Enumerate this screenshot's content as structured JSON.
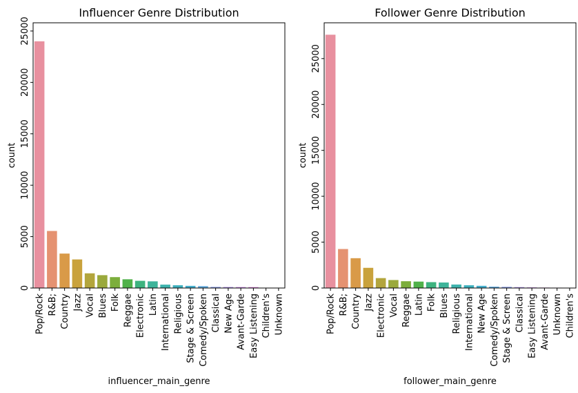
{
  "chart_data": [
    {
      "type": "bar",
      "title": "Influencer Genre Distribution",
      "xlabel": "influencer_main_genre",
      "ylabel": "count",
      "ylim": [
        0,
        25800
      ],
      "yticks": [
        0,
        5000,
        10000,
        15000,
        20000,
        25000
      ],
      "grid": false,
      "categories": [
        "Pop/Rock",
        "R&B;",
        "Country",
        "Jazz",
        "Vocal",
        "Blues",
        "Folk",
        "Reggae",
        "Electronic",
        "Latin",
        "International",
        "Religious",
        "Stage & Screen",
        "Comedy/Spoken",
        "Classical",
        "New Age",
        "Avant-Garde",
        "Easy Listening",
        "Children's",
        "Unknown"
      ],
      "values": [
        24000,
        5550,
        3350,
        2780,
        1430,
        1250,
        1060,
        850,
        700,
        650,
        330,
        270,
        210,
        180,
        110,
        100,
        95,
        90,
        20,
        10
      ],
      "colors": [
        "#e8909f",
        "#e59271",
        "#d99a48",
        "#c9a23c",
        "#b3a53c",
        "#9aa93c",
        "#7cae3c",
        "#50b14a",
        "#3db37f",
        "#3eb49a",
        "#3eb3ad",
        "#3fb0bd",
        "#43adcb",
        "#60a7da",
        "#8d9ee6",
        "#b093ea",
        "#cb8ae8",
        "#de84df",
        "#e585c5",
        "#e88ab0"
      ]
    },
    {
      "type": "bar",
      "title": "Follower Genre Distribution",
      "xlabel": "follower_main_genre",
      "ylabel": "count",
      "ylim": [
        0,
        28900
      ],
      "yticks": [
        0,
        5000,
        10000,
        15000,
        20000,
        25000
      ],
      "grid": false,
      "categories": [
        "Pop/Rock",
        "R&B;",
        "Country",
        "Jazz",
        "Electronic",
        "Vocal",
        "Reggae",
        "Latin",
        "Folk",
        "Blues",
        "Religious",
        "International",
        "New Age",
        "Comedy/Spoken",
        "Stage & Screen",
        "Classical",
        "Easy Listening",
        "Avant-Garde",
        "Unknown",
        "Children's"
      ],
      "values": [
        27600,
        4250,
        3250,
        2200,
        1080,
        870,
        740,
        700,
        640,
        600,
        380,
        300,
        240,
        150,
        130,
        100,
        70,
        50,
        40,
        20
      ],
      "colors": [
        "#e8909f",
        "#e59271",
        "#d99a48",
        "#c9a23c",
        "#b3a53c",
        "#9aa93c",
        "#7cae3c",
        "#50b14a",
        "#3db37f",
        "#3eb49a",
        "#3eb3ad",
        "#3fb0bd",
        "#43adcb",
        "#60a7da",
        "#8d9ee6",
        "#b093ea",
        "#cb8ae8",
        "#de84df",
        "#e585c5",
        "#e88ab0"
      ]
    }
  ]
}
